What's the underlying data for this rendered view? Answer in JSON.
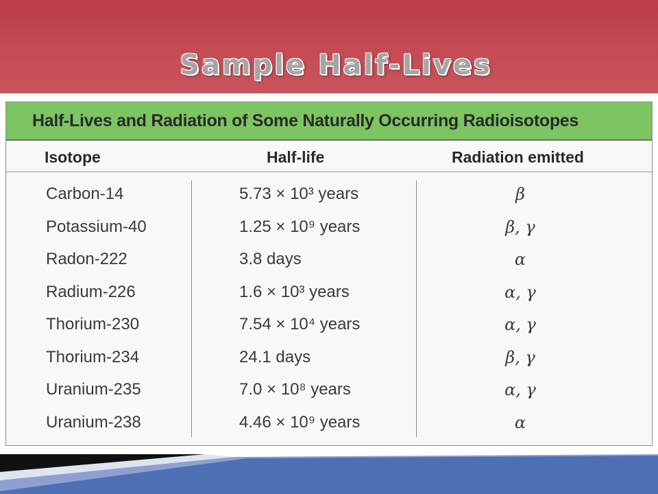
{
  "slide": {
    "title": "Sample Half-Lives"
  },
  "table": {
    "caption": "Half-Lives and Radiation of Some Naturally Occurring Radioisotopes",
    "headers": {
      "isotope": "Isotope",
      "half_life": "Half-life",
      "radiation": "Radiation emitted"
    },
    "rows": [
      {
        "isotope": "Carbon-14",
        "half_life": "5.73 × 10³ years",
        "radiation": "β"
      },
      {
        "isotope": "Potassium-40",
        "half_life": "1.25 × 10⁹ years",
        "radiation": "β, γ"
      },
      {
        "isotope": "Radon-222",
        "half_life": "3.8 days",
        "radiation": "α"
      },
      {
        "isotope": "Radium-226",
        "half_life": "1.6 × 10³ years",
        "radiation": "α, γ"
      },
      {
        "isotope": "Thorium-230",
        "half_life": "7.54 × 10⁴ years",
        "radiation": "α, γ"
      },
      {
        "isotope": "Thorium-234",
        "half_life": "24.1 days",
        "radiation": "β, γ"
      },
      {
        "isotope": "Uranium-235",
        "half_life": "7.0 × 10⁸ years",
        "radiation": "α, γ"
      },
      {
        "isotope": "Uranium-238",
        "half_life": "4.46 × 10⁹ years",
        "radiation": "α"
      }
    ]
  },
  "colors": {
    "header_red": "#c44a53",
    "caption_green": "#7dc462",
    "footer_blue": "#4f6fb5"
  }
}
